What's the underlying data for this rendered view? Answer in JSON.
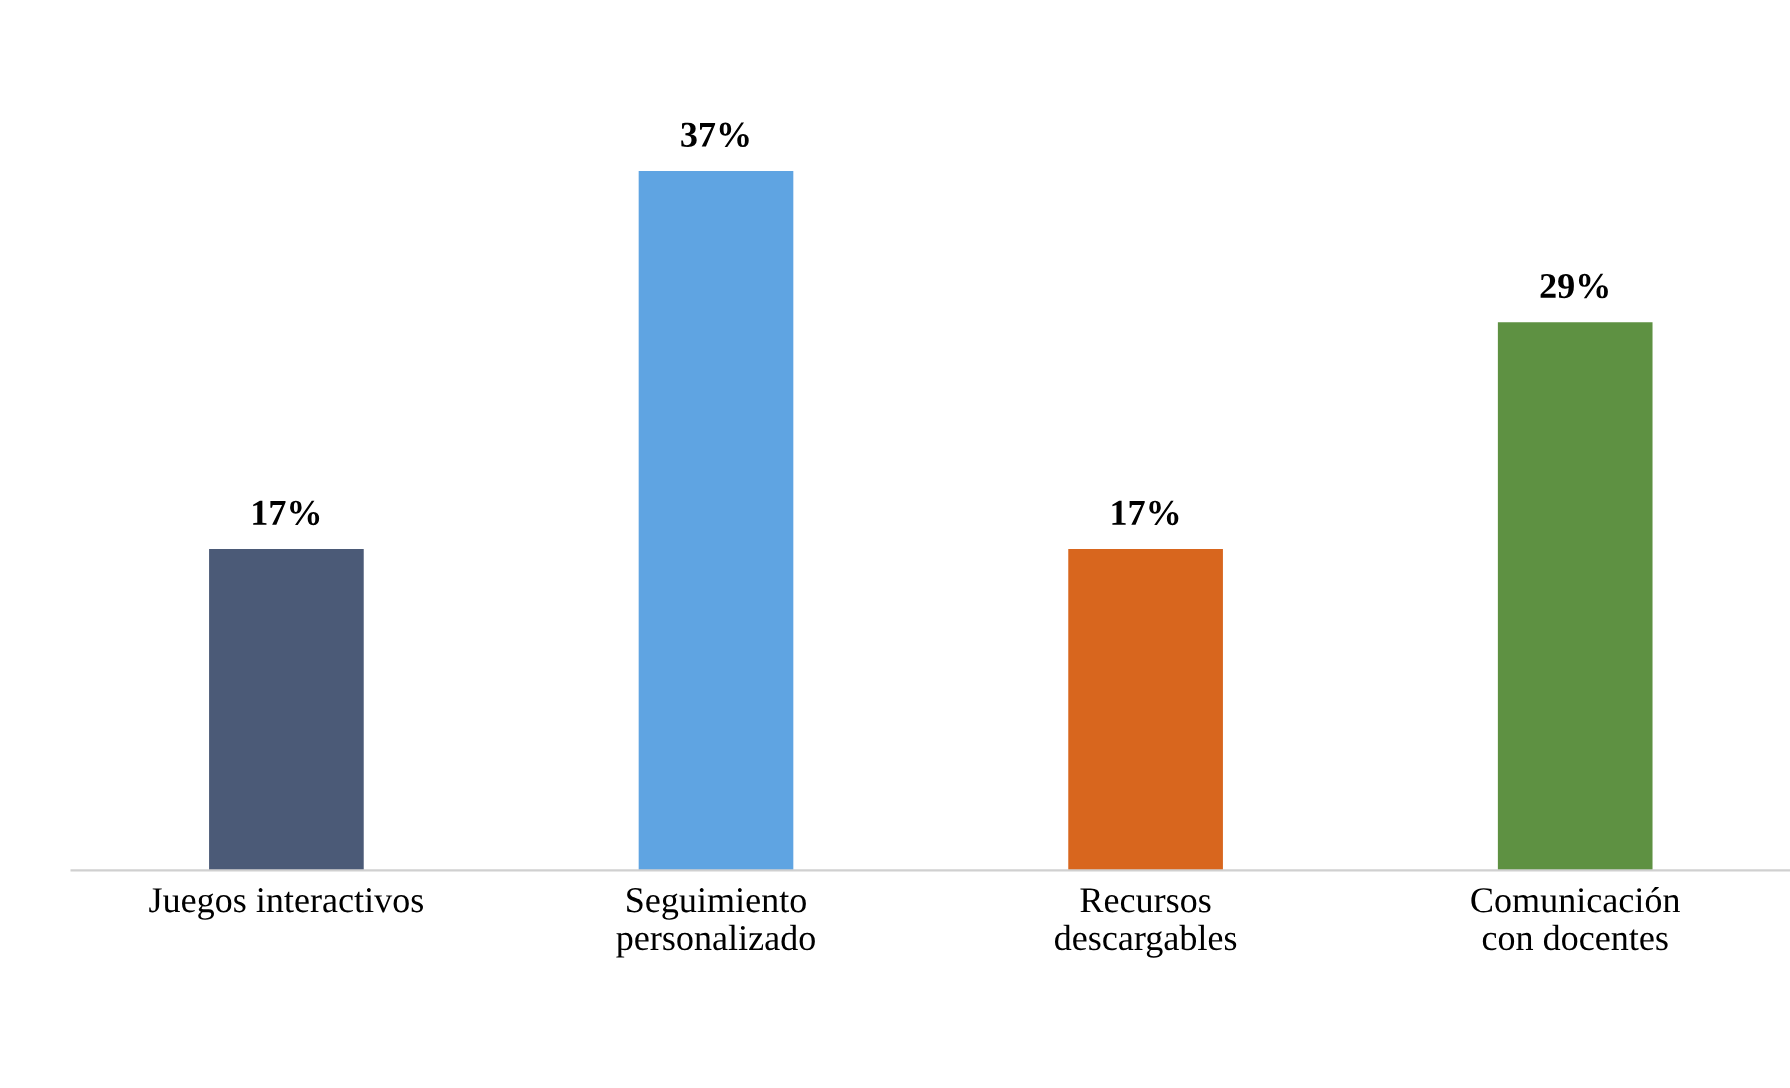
{
  "chart_data": {
    "type": "bar",
    "categories": [
      "Juegos interactivos",
      "Seguimiento personalizado",
      "Recursos descargables",
      "Comunicación con docentes"
    ],
    "values": [
      17,
      37,
      17,
      29
    ],
    "colors": [
      "#4b5a77",
      "#5fa4e2",
      "#d8661e",
      "#5e9142"
    ],
    "value_labels": [
      "17%",
      "37%",
      "17%",
      "29%"
    ],
    "grid": false
  }
}
